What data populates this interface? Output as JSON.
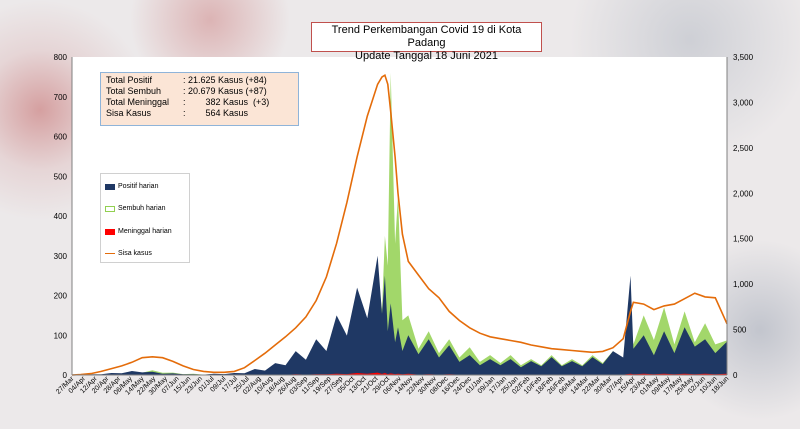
{
  "title": {
    "line1": "Trend Perkembangan Covid 19 di Kota Padang",
    "line2": "Update Tanggal 18 Juni 2021"
  },
  "summary": [
    {
      "label": "Total Positif",
      "value": ": 21.625 Kasus  (+84)"
    },
    {
      "label": "Total Sembuh",
      "value": ": 20.679 Kasus  (+87)"
    },
    {
      "label": "Total Meninggal",
      "value": ":        382 Kasus  (+3)"
    },
    {
      "label": "Sisa Kasus",
      "value": ":        564 Kasus"
    }
  ],
  "legend": {
    "positif": "Positif harian",
    "sembuh": "Sembuh harian",
    "meninggal": "Meninggal harian",
    "sisa": "Sisa kasus"
  },
  "colors": {
    "positif": "#1f3864",
    "sembuh": "#92d050",
    "meninggal": "#ff0000",
    "sisa": "#e46c0a",
    "title_border": "#c0504d",
    "summary_fill": "#fbe5d6"
  },
  "chart_data": {
    "type": "area",
    "title": "Trend Perkembangan Covid 19 di Kota Padang",
    "subtitle": "Update Tanggal 18 Juni 2021",
    "xlabel": "",
    "ylabel": "",
    "ylim": [
      0,
      800
    ],
    "y2lim": [
      0,
      3500
    ],
    "yticks": [
      "0",
      "100",
      "200",
      "300",
      "400",
      "500",
      "600",
      "700",
      "800"
    ],
    "y2ticks": [
      "0",
      "500",
      "1,000",
      "1,500",
      "2,000",
      "2,500",
      "3,000",
      "3,500"
    ],
    "grid": false,
    "legend_position": "left",
    "x_ticks": [
      "27/Mar",
      "04/Apr",
      "12/Apr",
      "20/Apr",
      "28/Apr",
      "06/May",
      "14/May",
      "22/May",
      "30/May",
      "07/Jun",
      "15/Jun",
      "23/Jun",
      "01/Jul",
      "09/Jul",
      "17/Jul",
      "25/Jul",
      "02/Aug",
      "10/Aug",
      "18/Aug",
      "26/Aug",
      "03/Sep",
      "11/Sep",
      "19/Sep",
      "27/Sep",
      "05/Oct",
      "13/Oct",
      "21/Oct",
      "29/Oct",
      "06/Nov",
      "14/Nov",
      "22/Nov",
      "30/Nov",
      "08/Dec",
      "16/Dec",
      "24/Dec",
      "01/Jan",
      "09/Jan",
      "17/Jan",
      "25/Jan",
      "02/Feb",
      "10/Feb",
      "18/Feb",
      "26/Feb",
      "06/Mar",
      "14/Mar",
      "22/Mar",
      "30/Mar",
      "07/Apr",
      "15/Apr",
      "23/Apr",
      "01/May",
      "09/May",
      "17/May",
      "25/May",
      "02/Jun",
      "10/Jun",
      "18/Jun"
    ],
    "x_dates": [
      "27/Mar",
      "02/Apr",
      "09/Apr",
      "16/Apr",
      "23/Apr",
      "30/Apr",
      "07/May",
      "14/May",
      "21/May",
      "28/May",
      "04/Jun",
      "11/Jun",
      "18/Jun",
      "25/Jun",
      "02/Jul",
      "09/Jul",
      "16/Jul",
      "23/Jul",
      "30/Jul",
      "06/Aug",
      "13/Aug",
      "20/Aug",
      "27/Aug",
      "03/Sep",
      "10/Sep",
      "17/Sep",
      "24/Sep",
      "01/Oct",
      "08/Oct",
      "15/Oct",
      "22/Oct",
      "25/Oct",
      "27/Oct",
      "29/Oct",
      "31/Oct",
      "03/Nov",
      "05/Nov",
      "08/Nov",
      "12/Nov",
      "19/Nov",
      "26/Nov",
      "03/Dec",
      "10/Dec",
      "17/Dec",
      "24/Dec",
      "31/Dec",
      "07/Jan",
      "14/Jan",
      "21/Jan",
      "28/Jan",
      "04/Feb",
      "11/Feb",
      "18/Feb",
      "25/Feb",
      "04/Mar",
      "11/Mar",
      "18/Mar",
      "25/Mar",
      "01/Apr",
      "08/Apr",
      "13/Apr",
      "15/Apr",
      "22/Apr",
      "29/Apr",
      "06/May",
      "13/May",
      "20/May",
      "27/May",
      "03/Jun",
      "10/Jun",
      "18/Jun"
    ],
    "series": [
      {
        "name": "Positif harian",
        "axis": "left",
        "values": [
          0,
          1,
          2,
          3,
          5,
          8,
          10,
          12,
          8,
          6,
          4,
          3,
          2,
          2,
          3,
          4,
          5,
          8,
          15,
          20,
          30,
          45,
          60,
          70,
          90,
          110,
          150,
          180,
          220,
          260,
          300,
          280,
          250,
          200,
          180,
          150,
          120,
          110,
          100,
          95,
          90,
          80,
          75,
          60,
          50,
          45,
          40,
          45,
          40,
          35,
          35,
          40,
          45,
          40,
          35,
          40,
          45,
          50,
          60,
          80,
          250,
          120,
          100,
          90,
          110,
          100,
          120,
          130,
          90,
          100,
          84
        ]
      },
      {
        "name": "Sembuh harian",
        "axis": "left",
        "values": [
          0,
          0,
          1,
          2,
          3,
          5,
          8,
          10,
          12,
          10,
          6,
          4,
          3,
          2,
          2,
          3,
          4,
          5,
          8,
          12,
          18,
          25,
          35,
          45,
          60,
          80,
          100,
          130,
          160,
          200,
          250,
          300,
          350,
          500,
          760,
          600,
          450,
          250,
          150,
          120,
          110,
          100,
          90,
          80,
          70,
          60,
          50,
          55,
          50,
          45,
          40,
          45,
          50,
          45,
          40,
          45,
          50,
          55,
          60,
          70,
          150,
          140,
          150,
          160,
          170,
          140,
          160,
          150,
          130,
          140,
          87
        ]
      },
      {
        "name": "Meninggal harian",
        "axis": "left",
        "values": [
          0,
          0,
          0,
          0,
          0,
          0,
          0,
          0,
          0,
          0,
          0,
          0,
          0,
          0,
          0,
          0,
          0,
          0,
          0,
          1,
          1,
          1,
          2,
          2,
          2,
          3,
          3,
          4,
          5,
          6,
          6,
          5,
          5,
          4,
          4,
          4,
          3,
          3,
          3,
          2,
          2,
          2,
          2,
          2,
          1,
          1,
          1,
          1,
          1,
          1,
          1,
          1,
          1,
          1,
          1,
          1,
          1,
          1,
          1,
          2,
          3,
          3,
          3,
          3,
          3,
          3,
          3,
          3,
          3,
          3,
          3
        ]
      },
      {
        "name": "Sisa kasus",
        "axis": "right",
        "values": [
          0,
          5,
          15,
          40,
          70,
          100,
          140,
          190,
          200,
          190,
          150,
          100,
          60,
          40,
          30,
          30,
          40,
          80,
          160,
          240,
          330,
          420,
          520,
          640,
          820,
          1080,
          1450,
          1900,
          2400,
          2850,
          3200,
          3280,
          3300,
          3200,
          2900,
          2400,
          2000,
          1550,
          1250,
          1100,
          950,
          850,
          700,
          600,
          520,
          460,
          420,
          400,
          380,
          360,
          330,
          310,
          290,
          280,
          270,
          260,
          250,
          260,
          300,
          400,
          700,
          800,
          780,
          720,
          760,
          780,
          840,
          900,
          860,
          850,
          564
        ]
      }
    ]
  }
}
